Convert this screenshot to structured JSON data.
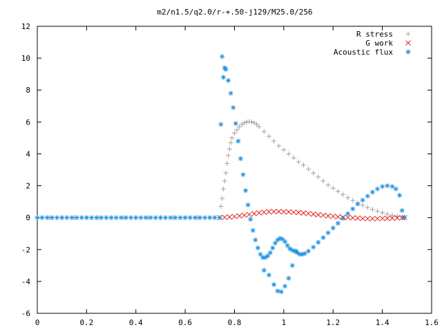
{
  "chart_data": {
    "type": "scatter",
    "title": "m2/n1.5/q2.0/r-+.50-j129/M25.0/256",
    "xlabel": "",
    "ylabel": "",
    "xlim": [
      0,
      1.6
    ],
    "ylim": [
      -6,
      12
    ],
    "x_ticks": [
      "0",
      "0.2",
      "0.4",
      "0.6",
      "0.8",
      "1",
      "1.2",
      "1.4",
      "1.6"
    ],
    "y_ticks": [
      "-6",
      "-4",
      "-2",
      "0",
      "2",
      "4",
      "6",
      "8",
      "10",
      "12"
    ],
    "grid": false,
    "legend_position": "top-right",
    "series": [
      {
        "name": "R stress",
        "color": "#a0a0a0",
        "marker": "plus",
        "points": [
          [
            0.0,
            0
          ],
          [
            0.05,
            0
          ],
          [
            0.1,
            0
          ],
          [
            0.15,
            0
          ],
          [
            0.2,
            0
          ],
          [
            0.25,
            0
          ],
          [
            0.3,
            0
          ],
          [
            0.35,
            0
          ],
          [
            0.4,
            0
          ],
          [
            0.45,
            0
          ],
          [
            0.5,
            0
          ],
          [
            0.55,
            0
          ],
          [
            0.6,
            0
          ],
          [
            0.65,
            0
          ],
          [
            0.7,
            0
          ],
          [
            0.74,
            0
          ],
          [
            0.745,
            0.7
          ],
          [
            0.75,
            1.2
          ],
          [
            0.755,
            1.8
          ],
          [
            0.76,
            2.3
          ],
          [
            0.765,
            2.8
          ],
          [
            0.77,
            3.4
          ],
          [
            0.775,
            3.9
          ],
          [
            0.78,
            4.3
          ],
          [
            0.785,
            4.7
          ],
          [
            0.79,
            5.0
          ],
          [
            0.8,
            5.3
          ],
          [
            0.81,
            5.5
          ],
          [
            0.82,
            5.7
          ],
          [
            0.83,
            5.85
          ],
          [
            0.84,
            5.95
          ],
          [
            0.85,
            6.0
          ],
          [
            0.86,
            6.02
          ],
          [
            0.87,
            6.0
          ],
          [
            0.88,
            5.95
          ],
          [
            0.89,
            5.85
          ],
          [
            0.9,
            5.7
          ],
          [
            0.92,
            5.4
          ],
          [
            0.94,
            5.1
          ],
          [
            0.96,
            4.8
          ],
          [
            0.98,
            4.5
          ],
          [
            1.0,
            4.25
          ],
          [
            1.02,
            4.0
          ],
          [
            1.04,
            3.75
          ],
          [
            1.06,
            3.5
          ],
          [
            1.08,
            3.3
          ],
          [
            1.1,
            3.05
          ],
          [
            1.12,
            2.8
          ],
          [
            1.14,
            2.55
          ],
          [
            1.16,
            2.3
          ],
          [
            1.18,
            2.05
          ],
          [
            1.2,
            1.85
          ],
          [
            1.22,
            1.65
          ],
          [
            1.24,
            1.45
          ],
          [
            1.26,
            1.25
          ],
          [
            1.28,
            1.08
          ],
          [
            1.3,
            0.92
          ],
          [
            1.32,
            0.78
          ],
          [
            1.34,
            0.64
          ],
          [
            1.36,
            0.52
          ],
          [
            1.38,
            0.41
          ],
          [
            1.4,
            0.31
          ],
          [
            1.42,
            0.22
          ],
          [
            1.44,
            0.15
          ],
          [
            1.46,
            0.09
          ],
          [
            1.48,
            0.04
          ],
          [
            1.49,
            0.02
          ]
        ]
      },
      {
        "name": "G work",
        "color": "#e02020",
        "marker": "cross",
        "points": [
          [
            0.74,
            0
          ],
          [
            0.76,
            0.02
          ],
          [
            0.78,
            0.04
          ],
          [
            0.8,
            0.07
          ],
          [
            0.82,
            0.11
          ],
          [
            0.84,
            0.15
          ],
          [
            0.86,
            0.2
          ],
          [
            0.88,
            0.25
          ],
          [
            0.9,
            0.3
          ],
          [
            0.92,
            0.34
          ],
          [
            0.94,
            0.37
          ],
          [
            0.96,
            0.38
          ],
          [
            0.98,
            0.38
          ],
          [
            1.0,
            0.37
          ],
          [
            1.02,
            0.36
          ],
          [
            1.04,
            0.34
          ],
          [
            1.06,
            0.32
          ],
          [
            1.08,
            0.29
          ],
          [
            1.1,
            0.26
          ],
          [
            1.12,
            0.22
          ],
          [
            1.14,
            0.18
          ],
          [
            1.16,
            0.15
          ],
          [
            1.18,
            0.11
          ],
          [
            1.2,
            0.08
          ],
          [
            1.22,
            0.05
          ],
          [
            1.24,
            0.03
          ],
          [
            1.26,
            0.01
          ],
          [
            1.28,
            -0.01
          ],
          [
            1.3,
            -0.03
          ],
          [
            1.32,
            -0.05
          ],
          [
            1.34,
            -0.06
          ],
          [
            1.36,
            -0.06
          ],
          [
            1.38,
            -0.06
          ],
          [
            1.4,
            -0.05
          ],
          [
            1.42,
            -0.04
          ],
          [
            1.44,
            -0.03
          ],
          [
            1.46,
            -0.02
          ],
          [
            1.48,
            -0.01
          ],
          [
            1.49,
            0
          ]
        ]
      },
      {
        "name": "Acoustic flux",
        "color": "#1e90e0",
        "marker": "star",
        "points": [
          [
            0.0,
            0
          ],
          [
            0.02,
            0
          ],
          [
            0.04,
            0
          ],
          [
            0.06,
            0
          ],
          [
            0.08,
            0
          ],
          [
            0.1,
            0
          ],
          [
            0.12,
            0
          ],
          [
            0.14,
            0
          ],
          [
            0.16,
            0
          ],
          [
            0.18,
            0
          ],
          [
            0.2,
            0
          ],
          [
            0.22,
            0
          ],
          [
            0.24,
            0
          ],
          [
            0.26,
            0
          ],
          [
            0.28,
            0
          ],
          [
            0.3,
            0
          ],
          [
            0.32,
            0
          ],
          [
            0.34,
            0
          ],
          [
            0.36,
            0
          ],
          [
            0.38,
            0
          ],
          [
            0.4,
            0
          ],
          [
            0.42,
            0
          ],
          [
            0.44,
            0
          ],
          [
            0.46,
            0
          ],
          [
            0.48,
            0
          ],
          [
            0.5,
            0
          ],
          [
            0.52,
            0
          ],
          [
            0.54,
            0
          ],
          [
            0.56,
            0
          ],
          [
            0.58,
            0
          ],
          [
            0.6,
            0
          ],
          [
            0.62,
            0
          ],
          [
            0.64,
            0
          ],
          [
            0.66,
            0
          ],
          [
            0.68,
            0
          ],
          [
            0.7,
            0
          ],
          [
            0.72,
            0
          ],
          [
            0.74,
            0
          ],
          [
            0.745,
            5.85
          ],
          [
            0.75,
            10.1
          ],
          [
            0.755,
            8.8
          ],
          [
            0.76,
            9.4
          ],
          [
            0.765,
            9.3
          ],
          [
            0.775,
            8.6
          ],
          [
            0.785,
            7.8
          ],
          [
            0.795,
            6.9
          ],
          [
            0.805,
            5.9
          ],
          [
            0.815,
            4.8
          ],
          [
            0.825,
            3.7
          ],
          [
            0.835,
            2.7
          ],
          [
            0.845,
            1.7
          ],
          [
            0.855,
            0.8
          ],
          [
            0.865,
            -0.1
          ],
          [
            0.875,
            -0.8
          ],
          [
            0.885,
            -1.4
          ],
          [
            0.895,
            -1.9
          ],
          [
            0.905,
            -2.3
          ],
          [
            0.915,
            -2.5
          ],
          [
            0.925,
            -2.5
          ],
          [
            0.935,
            -2.4
          ],
          [
            0.945,
            -2.2
          ],
          [
            0.955,
            -1.9
          ],
          [
            0.965,
            -1.6
          ],
          [
            0.975,
            -1.4
          ],
          [
            0.985,
            -1.3
          ],
          [
            0.995,
            -1.35
          ],
          [
            1.005,
            -1.5
          ],
          [
            1.015,
            -1.75
          ],
          [
            1.025,
            -1.95
          ],
          [
            1.035,
            -2.05
          ],
          [
            1.045,
            -2.1
          ],
          [
            1.055,
            -2.2
          ],
          [
            1.065,
            -2.3
          ],
          [
            1.075,
            -2.3
          ],
          [
            1.085,
            -2.25
          ],
          [
            1.1,
            -2.1
          ],
          [
            1.12,
            -1.85
          ],
          [
            1.14,
            -1.55
          ],
          [
            1.16,
            -1.25
          ],
          [
            1.18,
            -0.95
          ],
          [
            1.2,
            -0.65
          ],
          [
            1.22,
            -0.35
          ],
          [
            1.24,
            -0.05
          ],
          [
            1.26,
            0.25
          ],
          [
            1.28,
            0.55
          ],
          [
            1.3,
            0.85
          ],
          [
            1.32,
            1.1
          ],
          [
            1.34,
            1.35
          ],
          [
            1.36,
            1.6
          ],
          [
            1.38,
            1.8
          ],
          [
            1.4,
            1.95
          ],
          [
            1.42,
            2.0
          ],
          [
            1.44,
            1.95
          ],
          [
            1.455,
            1.8
          ],
          [
            1.47,
            1.4
          ],
          [
            1.48,
            0.45
          ],
          [
            1.49,
            0
          ],
          [
            0.92,
            -3.3
          ],
          [
            0.94,
            -3.6
          ],
          [
            0.96,
            -4.2
          ],
          [
            0.975,
            -4.6
          ],
          [
            0.99,
            -4.65
          ],
          [
            1.005,
            -4.3
          ],
          [
            1.02,
            -3.8
          ],
          [
            1.035,
            -3.0
          ],
          [
            1.05,
            -2.1
          ]
        ]
      }
    ]
  }
}
